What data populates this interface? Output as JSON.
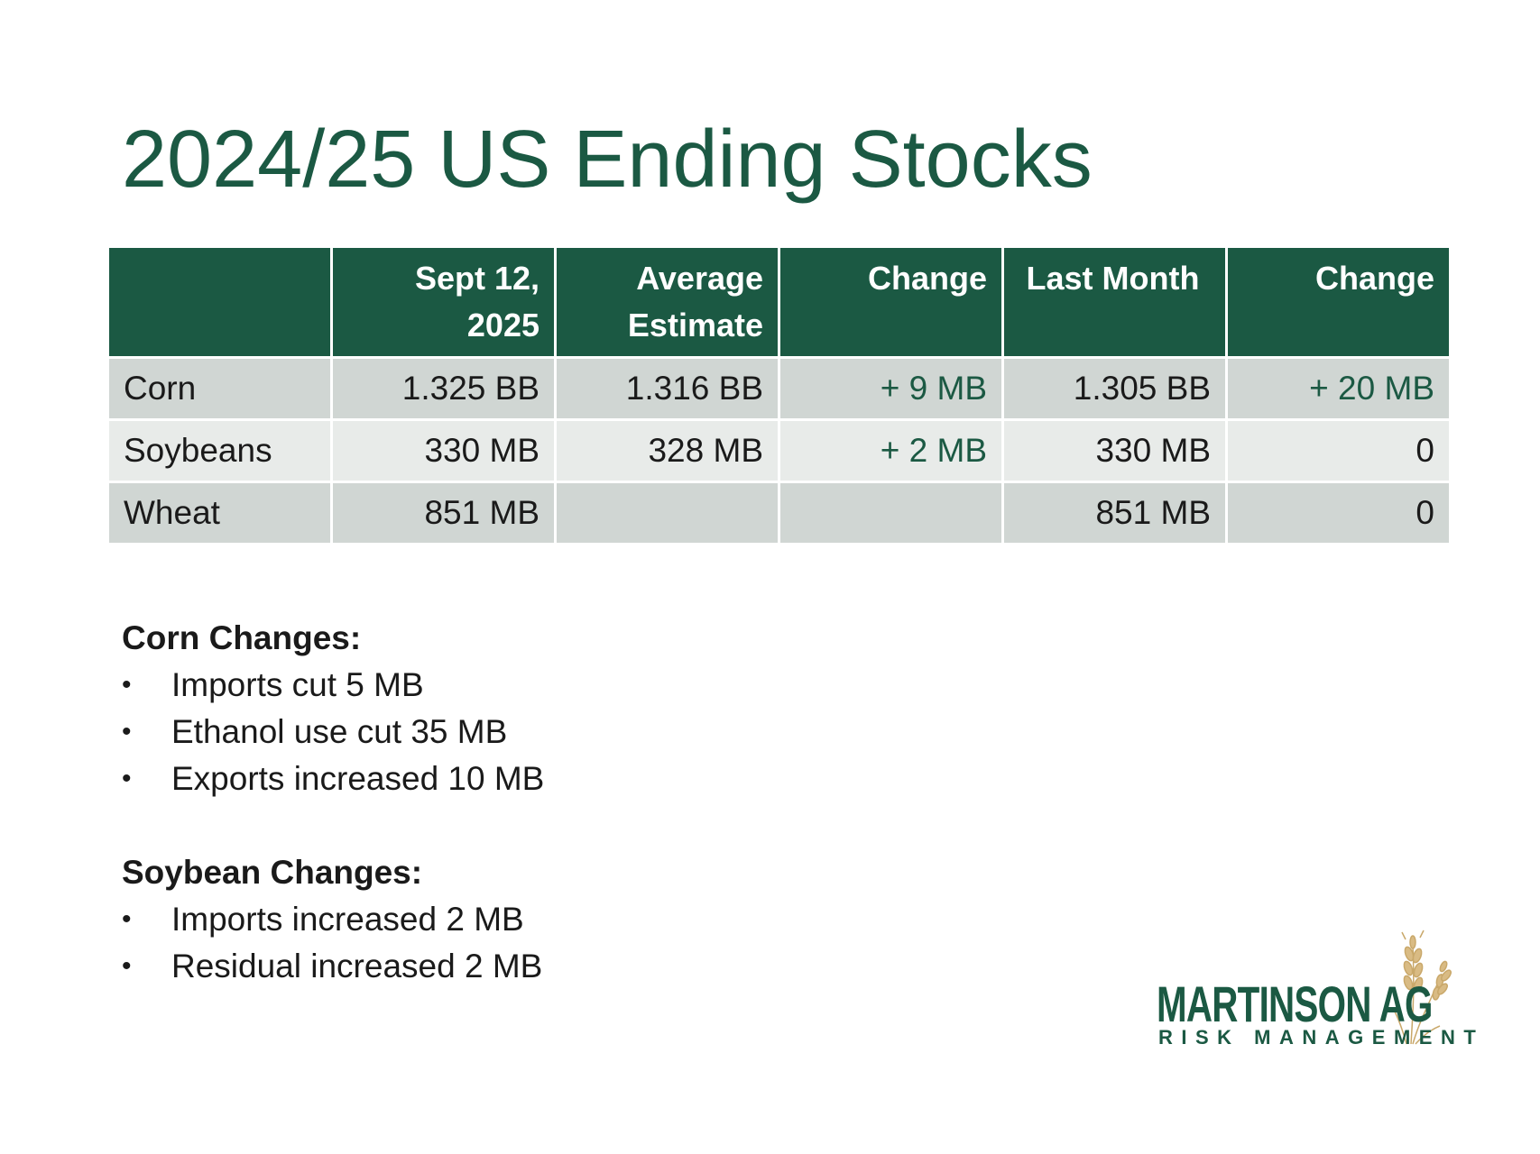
{
  "title": "2024/25 US Ending Stocks",
  "table": {
    "headers": [
      "",
      "Sept 12,\n2025",
      "Average\nEstimate",
      "Change",
      "Last Month",
      "Change"
    ],
    "rows": [
      [
        "Corn",
        "1.325 BB",
        "1.316 BB",
        "+ 9 MB",
        "1.305 BB",
        "+ 20 MB"
      ],
      [
        "Soybeans",
        "330 MB",
        "328 MB",
        "+ 2 MB",
        "330 MB",
        "0"
      ],
      [
        "Wheat",
        "851 MB",
        "",
        "",
        "851 MB",
        "0"
      ]
    ]
  },
  "notes": [
    {
      "heading": "Corn Changes:",
      "items": [
        "Imports cut 5 MB",
        "Ethanol use cut 35 MB",
        "Exports increased 10 MB"
      ]
    },
    {
      "heading": "Soybean Changes:",
      "items": [
        "Imports increased 2 MB",
        "Residual increased 2 MB"
      ]
    }
  ],
  "logo": {
    "name": "MARTINSON AG",
    "tagline": "RISK MANAGEMENT",
    "icon": "wheat-icon"
  },
  "colors": {
    "brand_green": "#1b5943",
    "row_dark": "#d0d6d3",
    "row_light": "#e8ebe9",
    "wheat_gold": "#c9a86a"
  }
}
